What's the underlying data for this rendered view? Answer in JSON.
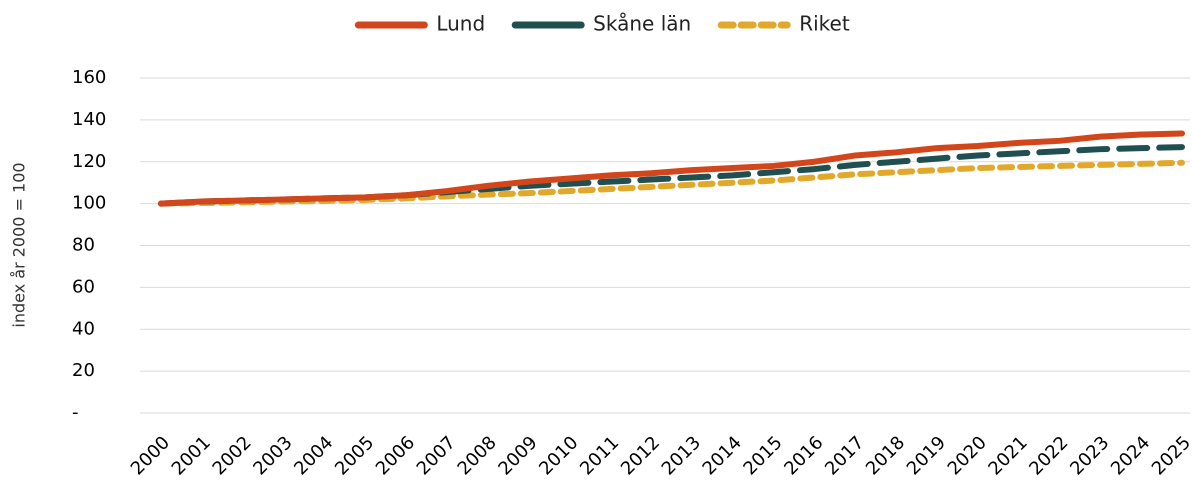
{
  "chart_data": {
    "type": "line",
    "y_label": "index år 2000 = 100",
    "categories": [
      "2000",
      "2001",
      "2002",
      "2003",
      "2004",
      "2005",
      "2006",
      "2007",
      "2008",
      "2009",
      "2010",
      "2011",
      "2012",
      "2013",
      "2014",
      "2015",
      "2016",
      "2017",
      "2018",
      "2019",
      "2020",
      "2021",
      "2022",
      "2023",
      "2024",
      "2025"
    ],
    "series": [
      {
        "name": "Lund",
        "color": "#d2461b",
        "line_style": "solid",
        "values": [
          100,
          101,
          101.5,
          102,
          102.5,
          103,
          104,
          106,
          108.5,
          110.5,
          112,
          113.5,
          114.5,
          116,
          117,
          118,
          120,
          123,
          124.5,
          126.5,
          127.5,
          129,
          130,
          132,
          133,
          133.5
        ]
      },
      {
        "name": "Skåne län",
        "color": "#1f4f50",
        "line_style": "long-dash",
        "values": [
          100,
          101,
          101.5,
          102,
          102.5,
          103,
          104,
          105.5,
          107,
          108.5,
          109.5,
          110.5,
          111.5,
          112.5,
          113.5,
          115,
          116.5,
          118.5,
          120,
          121.5,
          123,
          124,
          125,
          126,
          126.5,
          127
        ]
      },
      {
        "name": "Riket",
        "color": "#e2a82b",
        "line_style": "short-dash",
        "values": [
          100,
          100.3,
          100.6,
          101,
          101.3,
          101.8,
          102.5,
          103.5,
          104.3,
          105,
          106,
          107,
          108,
          109,
          110,
          111,
          112.5,
          114,
          115,
          116,
          117,
          117.5,
          118,
          118.5,
          119,
          119.5
        ]
      }
    ],
    "ylim": [
      0,
      160
    ],
    "yticks": [
      {
        "value": 0,
        "label": "-"
      },
      20,
      40,
      60,
      80,
      100,
      120,
      140,
      160
    ],
    "grid": true,
    "legend": "top"
  }
}
